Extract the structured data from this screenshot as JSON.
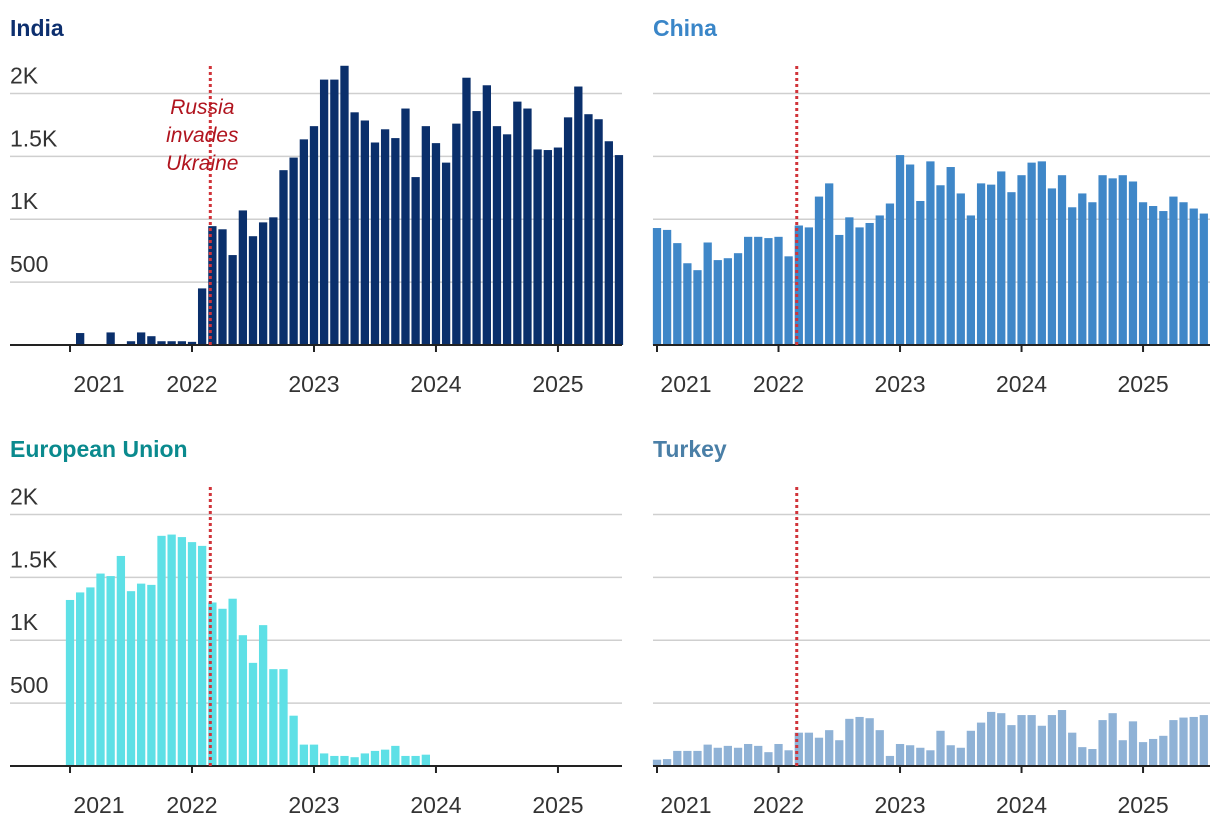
{
  "chart_data": [
    {
      "type": "bar",
      "title": "India",
      "title_color": "#0d2f6e",
      "color": "#0a2f6b",
      "annotation": [
        "Russia",
        "invades",
        "Ukraine"
      ],
      "event_x": 2022.15,
      "ytick_labels": true,
      "x": [
        2021,
        2021.083,
        2021.167,
        2021.25,
        2021.333,
        2021.417,
        2021.5,
        2021.583,
        2021.667,
        2021.75,
        2021.833,
        2021.917,
        2022,
        2022.083,
        2022.167,
        2022.25,
        2022.333,
        2022.417,
        2022.5,
        2022.583,
        2022.667,
        2022.75,
        2022.833,
        2022.917,
        2023,
        2023.083,
        2023.167,
        2023.25,
        2023.333,
        2023.417,
        2023.5,
        2023.583,
        2023.667,
        2023.75,
        2023.833,
        2023.917,
        2024,
        2024.083,
        2024.167,
        2024.25,
        2024.333,
        2024.417,
        2024.5,
        2024.583,
        2024.667,
        2024.75,
        2024.833,
        2024.917,
        2025,
        2025.083,
        2025.167,
        2025.25,
        2025.333,
        2025.417,
        2025.5
      ],
      "values": [
        0,
        95,
        0,
        0,
        100,
        0,
        30,
        100,
        70,
        30,
        30,
        30,
        25,
        450,
        945,
        920,
        715,
        1070,
        865,
        975,
        1015,
        1390,
        1490,
        1635,
        1740,
        2110,
        2110,
        2220,
        1850,
        1785,
        1610,
        1715,
        1645,
        1880,
        1335,
        1740,
        1605,
        1450,
        1760,
        2125,
        1860,
        2065,
        1740,
        1675,
        1935,
        1880,
        1555,
        1550,
        1570,
        1810,
        2055,
        1835,
        1795,
        1620,
        1510
      ],
      "xlim": [
        2020.508,
        2025.525
      ],
      "xticks": [
        2021,
        2022,
        2023,
        2024,
        2025
      ],
      "ylim": [
        0,
        2250
      ],
      "yticks": [
        500,
        {
          "value": 1000,
          "label": "1K"
        },
        {
          "value": 1500,
          "label": "1.5K"
        },
        {
          "value": 2000,
          "label": "2K"
        }
      ]
    },
    {
      "type": "bar",
      "title": "China",
      "title_color": "#3a86c8",
      "color": "#3f87c8",
      "event_x": 2022.15,
      "ytick_labels": false,
      "x": [
        2021,
        2021.083,
        2021.167,
        2021.25,
        2021.333,
        2021.417,
        2021.5,
        2021.583,
        2021.667,
        2021.75,
        2021.833,
        2021.917,
        2022,
        2022.083,
        2022.167,
        2022.25,
        2022.333,
        2022.417,
        2022.5,
        2022.583,
        2022.667,
        2022.75,
        2022.833,
        2022.917,
        2023,
        2023.083,
        2023.167,
        2023.25,
        2023.333,
        2023.417,
        2023.5,
        2023.583,
        2023.667,
        2023.75,
        2023.833,
        2023.917,
        2024,
        2024.083,
        2024.167,
        2024.25,
        2024.333,
        2024.417,
        2024.5,
        2024.583,
        2024.667,
        2024.75,
        2024.833,
        2024.917,
        2025,
        2025.083,
        2025.167,
        2025.25,
        2025.333,
        2025.417,
        2025.5
      ],
      "values": [
        930,
        915,
        810,
        650,
        595,
        815,
        675,
        690,
        730,
        860,
        860,
        850,
        860,
        705,
        950,
        935,
        1180,
        1285,
        875,
        1015,
        935,
        970,
        1030,
        1125,
        1510,
        1435,
        1145,
        1460,
        1270,
        1415,
        1205,
        1030,
        1285,
        1275,
        1380,
        1215,
        1350,
        1450,
        1460,
        1245,
        1350,
        1095,
        1205,
        1135,
        1350,
        1325,
        1350,
        1300,
        1135,
        1105,
        1065,
        1180,
        1135,
        1085,
        1045
      ],
      "xlim": [
        2020.967,
        2025.551
      ],
      "xticks": [
        2021,
        2022,
        2023,
        2024,
        2025
      ],
      "ylim": [
        0,
        2250
      ],
      "yticks": [
        500,
        1000,
        1500,
        2000
      ]
    },
    {
      "type": "bar",
      "title": "European Union",
      "title_color": "#0a8a8e",
      "color": "#5ee0e6",
      "event_x": 2022.15,
      "ytick_labels": true,
      "x": [
        2021,
        2021.083,
        2021.167,
        2021.25,
        2021.333,
        2021.417,
        2021.5,
        2021.583,
        2021.667,
        2021.75,
        2021.833,
        2021.917,
        2022,
        2022.083,
        2022.167,
        2022.25,
        2022.333,
        2022.417,
        2022.5,
        2022.583,
        2022.667,
        2022.75,
        2022.833,
        2022.917,
        2023,
        2023.083,
        2023.167,
        2023.25,
        2023.333,
        2023.417,
        2023.5,
        2023.583,
        2023.667,
        2023.75,
        2023.833,
        2023.917,
        2024,
        2024.083,
        2024.167,
        2024.25,
        2024.333,
        2024.417,
        2024.5,
        2024.583,
        2024.667,
        2024.75,
        2024.833,
        2024.917,
        2025,
        2025.083,
        2025.167,
        2025.25,
        2025.333,
        2025.417,
        2025.5
      ],
      "values": [
        1320,
        1380,
        1420,
        1530,
        1510,
        1670,
        1390,
        1450,
        1440,
        1830,
        1840,
        1820,
        1780,
        1750,
        1300,
        1250,
        1330,
        1040,
        820,
        1120,
        770,
        770,
        400,
        170,
        170,
        100,
        80,
        80,
        70,
        100,
        120,
        130,
        160,
        80,
        80,
        90,
        0,
        0,
        0,
        0,
        0,
        0,
        0,
        0,
        0,
        0,
        0,
        0,
        0,
        0,
        0,
        0,
        0,
        0,
        0
      ],
      "xlim": [
        2020.508,
        2025.525
      ],
      "xticks": [
        2021,
        2022,
        2023,
        2024,
        2025
      ],
      "ylim": [
        0,
        2250
      ],
      "yticks": [
        500,
        {
          "value": 1000,
          "label": "1K"
        },
        {
          "value": 1500,
          "label": "1.5K"
        },
        {
          "value": 2000,
          "label": "2K"
        }
      ]
    },
    {
      "type": "bar",
      "title": "Turkey",
      "title_color": "#4a7fa7",
      "color": "#8fb2d6",
      "event_x": 2022.15,
      "ytick_labels": false,
      "x": [
        2021,
        2021.083,
        2021.167,
        2021.25,
        2021.333,
        2021.417,
        2021.5,
        2021.583,
        2021.667,
        2021.75,
        2021.833,
        2021.917,
        2022,
        2022.083,
        2022.167,
        2022.25,
        2022.333,
        2022.417,
        2022.5,
        2022.583,
        2022.667,
        2022.75,
        2022.833,
        2022.917,
        2023,
        2023.083,
        2023.167,
        2023.25,
        2023.333,
        2023.417,
        2023.5,
        2023.583,
        2023.667,
        2023.75,
        2023.833,
        2023.917,
        2024,
        2024.083,
        2024.167,
        2024.25,
        2024.333,
        2024.417,
        2024.5,
        2024.583,
        2024.667,
        2024.75,
        2024.833,
        2024.917,
        2025,
        2025.083,
        2025.167,
        2025.25,
        2025.333,
        2025.417,
        2025.5
      ],
      "values": [
        50,
        55,
        120,
        120,
        120,
        170,
        145,
        160,
        145,
        175,
        160,
        110,
        175,
        125,
        265,
        265,
        225,
        285,
        205,
        375,
        390,
        380,
        285,
        80,
        175,
        165,
        145,
        125,
        280,
        165,
        145,
        280,
        345,
        430,
        420,
        325,
        405,
        405,
        320,
        405,
        445,
        265,
        150,
        135,
        365,
        420,
        205,
        355,
        190,
        215,
        240,
        365,
        385,
        390,
        405
      ],
      "xlim": [
        2020.967,
        2025.551
      ],
      "xticks": [
        2021,
        2022,
        2023,
        2024,
        2025
      ],
      "ylim": [
        0,
        2250
      ],
      "yticks": [
        500,
        1000,
        1500,
        2000
      ]
    }
  ]
}
